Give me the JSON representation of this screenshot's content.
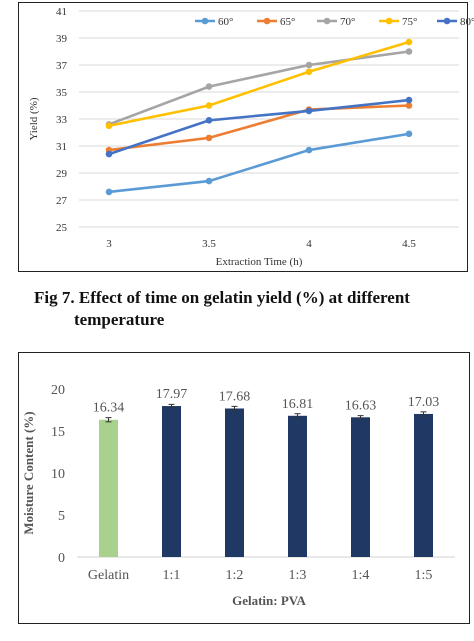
{
  "figure_caption": {
    "line1": "Fig 7. Effect of time on gelatin yield (%) at different",
    "line2": "temperature"
  },
  "chart_data": [
    {
      "type": "line",
      "x": [
        3,
        3.5,
        4,
        4.5
      ],
      "x_tick_labels": [
        "3",
        "3.5",
        "4",
        "4.5"
      ],
      "xlabel": "Extraction Time (h)",
      "ylabel": "Yield (%)",
      "ylim": [
        25,
        41
      ],
      "y_ticks": [
        25,
        27,
        29,
        31,
        33,
        35,
        37,
        39,
        41
      ],
      "grid": true,
      "legend_position": "top",
      "series": [
        {
          "name": "60°",
          "color": "#5b9bd5",
          "values": [
            27.6,
            28.4,
            30.7,
            31.9
          ]
        },
        {
          "name": "65°",
          "color": "#ed7d31",
          "values": [
            30.7,
            31.6,
            33.7,
            34.0
          ]
        },
        {
          "name": "70°",
          "color": "#a5a5a5",
          "values": [
            32.6,
            35.4,
            37.0,
            38.0
          ]
        },
        {
          "name": "75°",
          "color": "#ffc000",
          "values": [
            32.5,
            34.0,
            36.5,
            38.7
          ]
        },
        {
          "name": "80°",
          "color": "#4472c4",
          "values": [
            30.4,
            32.9,
            33.6,
            34.4
          ]
        }
      ]
    },
    {
      "type": "bar",
      "categories": [
        "Gelatin",
        "1:1",
        "1:2",
        "1:3",
        "1:4",
        "1:5"
      ],
      "values": [
        16.34,
        17.97,
        17.68,
        16.81,
        16.63,
        17.03
      ],
      "data_labels": [
        "16.34",
        "17.97",
        "17.68",
        "16.81",
        "16.63",
        "17.03"
      ],
      "errors": [
        0.25,
        0.2,
        0.25,
        0.25,
        0.2,
        0.25
      ],
      "colors": [
        "#a9d18e",
        "#203864",
        "#203864",
        "#203864",
        "#203864",
        "#203864"
      ],
      "xlabel": "Gelatin: PVA",
      "ylabel": "Moisture Content (%)",
      "ylim": [
        0,
        20
      ],
      "y_ticks": [
        0,
        5,
        10,
        15,
        20
      ],
      "grid": false
    }
  ]
}
